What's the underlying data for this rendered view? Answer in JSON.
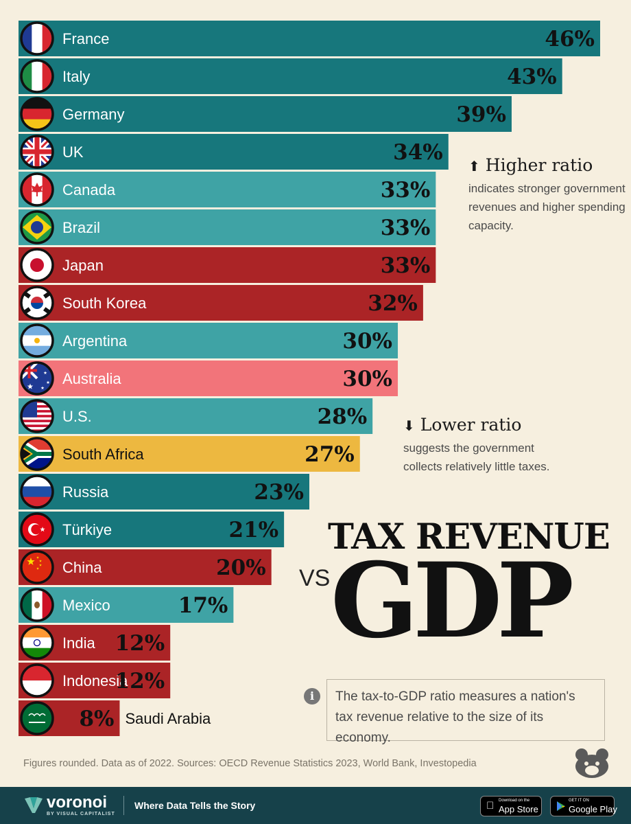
{
  "chart_data": {
    "type": "bar",
    "orientation": "horizontal",
    "title": "TAX REVENUE",
    "title_connector": "VS",
    "title_emphasis": "GDP",
    "unit": "%",
    "xlim": [
      0,
      46
    ],
    "categories": [
      "France",
      "Italy",
      "Germany",
      "UK",
      "Canada",
      "Brazil",
      "Japan",
      "South Korea",
      "Argentina",
      "Australia",
      "U.S.",
      "South Africa",
      "Russia",
      "Türkiye",
      "China",
      "Mexico",
      "India",
      "Indonesia",
      "Saudi Arabia"
    ],
    "values": [
      46,
      43,
      39,
      34,
      33,
      33,
      33,
      32,
      30,
      30,
      28,
      27,
      23,
      21,
      20,
      17,
      12,
      12,
      8
    ],
    "value_labels": [
      "46%",
      "43%",
      "39%",
      "34%",
      "33%",
      "33%",
      "33%",
      "32%",
      "30%",
      "30%",
      "28%",
      "27%",
      "23%",
      "21%",
      "20%",
      "17%",
      "12%",
      "12%",
      "8%"
    ],
    "bar_colors": [
      "#17777c",
      "#17777c",
      "#17777c",
      "#17777c",
      "#3fa3a5",
      "#3fa3a5",
      "#ab2426",
      "#ab2426",
      "#3fa3a5",
      "#f2747a",
      "#3fa3a5",
      "#edb840",
      "#17777c",
      "#17777c",
      "#ab2426",
      "#3fa3a5",
      "#ab2426",
      "#ab2426",
      "#ab2426"
    ],
    "label_colors": [
      "#ffffff",
      "#ffffff",
      "#ffffff",
      "#ffffff",
      "#ffffff",
      "#ffffff",
      "#ffffff",
      "#ffffff",
      "#ffffff",
      "#ffffff",
      "#ffffff",
      "#111111",
      "#ffffff",
      "#ffffff",
      "#ffffff",
      "#ffffff",
      "#ffffff",
      "#ffffff",
      "#111111"
    ],
    "flags": [
      "france-flag-icon",
      "italy-flag-icon",
      "germany-flag-icon",
      "uk-flag-icon",
      "canada-flag-icon",
      "brazil-flag-icon",
      "japan-flag-icon",
      "south-korea-flag-icon",
      "argentina-flag-icon",
      "australia-flag-icon",
      "us-flag-icon",
      "south-africa-flag-icon",
      "russia-flag-icon",
      "turkiye-flag-icon",
      "china-flag-icon",
      "mexico-flag-icon",
      "india-flag-icon",
      "indonesia-flag-icon",
      "saudi-arabia-flag-icon"
    ],
    "legend": "none",
    "grid": false
  },
  "annotations": {
    "higher": {
      "arrow": "⬆",
      "title": "Higher ratio",
      "body": "indicates stronger government revenues and higher spending capacity."
    },
    "lower": {
      "arrow": "⬇",
      "title": "Lower ratio",
      "body": "suggests the government collects relatively little taxes."
    }
  },
  "info": {
    "icon": "info-icon",
    "text": "The tax-to-GDP ratio measures a nation's tax revenue relative to the size of its economy."
  },
  "source": "Figures rounded. Data as of 2022. Sources: OECD Revenue Statistics 2023, World Bank, Investopedia",
  "footer": {
    "brand": "voronoi",
    "brand_sub": "BY VISUAL CAPITALIST",
    "tagline": "Where Data Tells the Story",
    "app_store_small": "Download on the",
    "app_store": "App Store",
    "google_play_small": "GET IT ON",
    "google_play": "Google Play"
  },
  "colors": {
    "background": "#f6efdf",
    "footer": "#16414a",
    "teal_dark": "#17777c",
    "teal_light": "#3fa3a5",
    "red": "#ab2426",
    "pink": "#f2747a",
    "yellow": "#edb840"
  }
}
